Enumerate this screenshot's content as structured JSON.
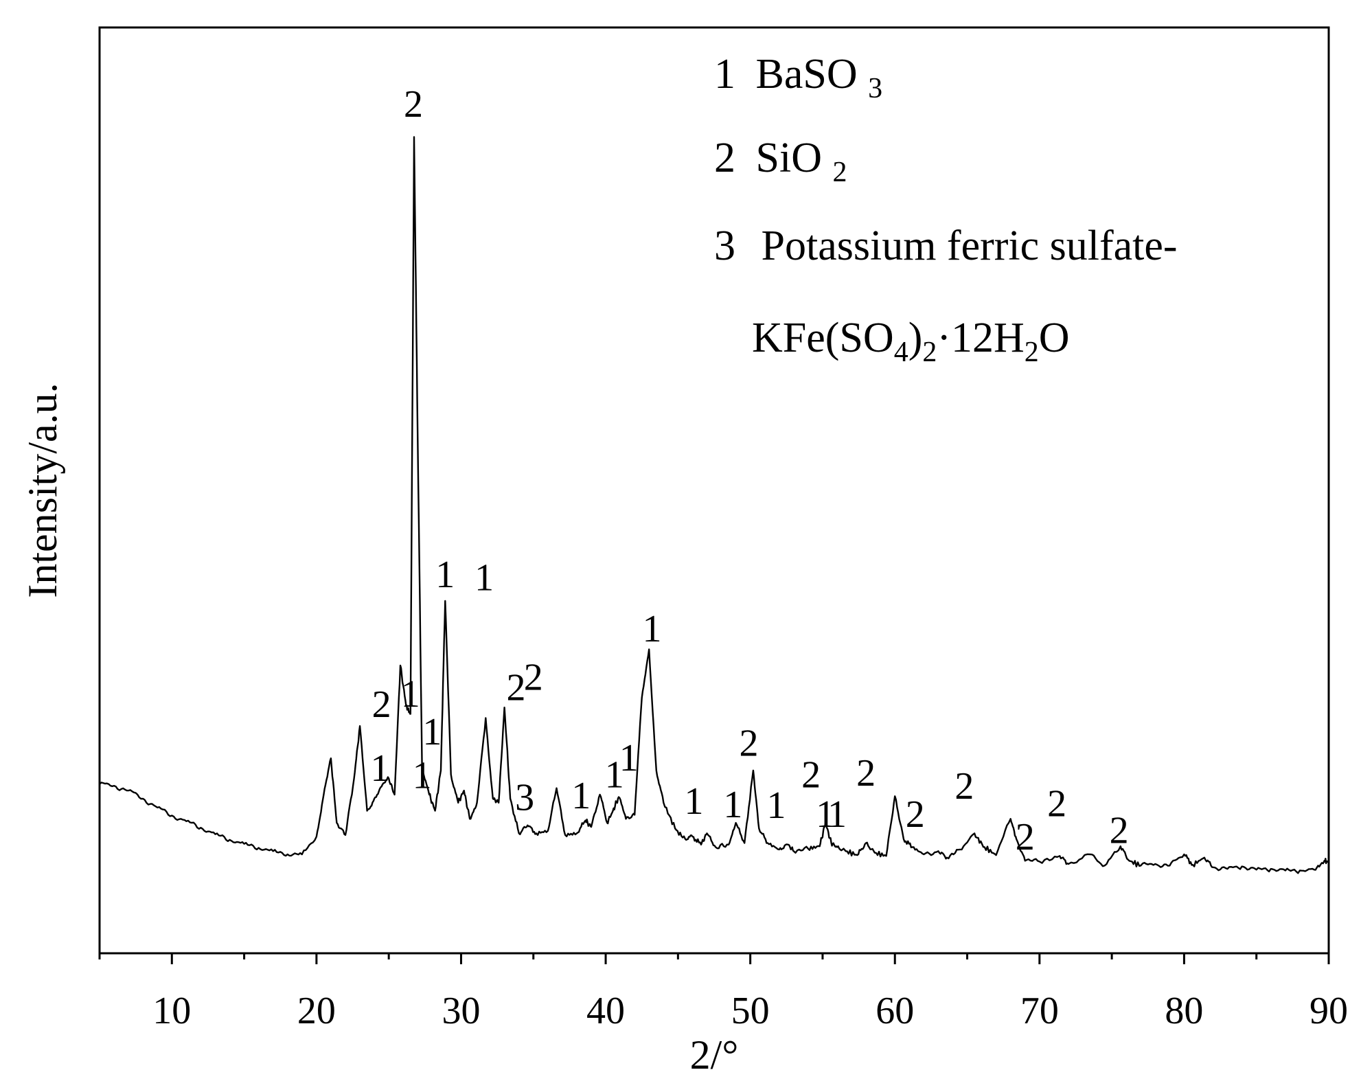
{
  "chart_data": {
    "type": "line",
    "title": "",
    "xlabel": "2/°",
    "ylabel": "Intensity/a.u.",
    "xlim": [
      5,
      90
    ],
    "ylim": [
      0,
      1000
    ],
    "x_ticks": [
      "10",
      "20",
      "30",
      "40",
      "50",
      "60",
      "70",
      "80",
      "90"
    ],
    "y_ticks": [],
    "grid": false,
    "line_color": "#000000",
    "legend_position": "top-right",
    "legend": [
      {
        "num": "1",
        "formula": "BaSO",
        "sub": "3"
      },
      {
        "num": "2",
        "formula": "SiO",
        "sub": "2"
      },
      {
        "num": "3",
        "formula": "Potassium ferric sulfate-",
        "sub": ""
      }
    ],
    "legend_extra": {
      "p1": "KFe(SO",
      "s1": "4",
      "p2": ")",
      "s2": "2",
      "p3": "·12H",
      "s3": "2",
      "p4": "O"
    },
    "series": [
      {
        "name": "",
        "points": [
          [
            5,
            173
          ],
          [
            6,
            171
          ],
          [
            7,
            165
          ],
          [
            8,
            155
          ],
          [
            9,
            144
          ],
          [
            10,
            134
          ],
          [
            11,
            127
          ],
          [
            12,
            119
          ],
          [
            13,
            111
          ],
          [
            14,
            104
          ],
          [
            15,
            99
          ],
          [
            16,
            94
          ],
          [
            17,
            90
          ],
          [
            18,
            86
          ],
          [
            19,
            86
          ],
          [
            20,
            108
          ],
          [
            20.5,
            160
          ],
          [
            21,
            205
          ],
          [
            21.4,
            125
          ],
          [
            22,
            110
          ],
          [
            22.6,
            180
          ],
          [
            23,
            245
          ],
          [
            23.5,
            140
          ],
          [
            24,
            155
          ],
          [
            24.5,
            170
          ],
          [
            25,
            180
          ],
          [
            25.4,
            160
          ],
          [
            25.8,
            320
          ],
          [
            26.2,
            270
          ],
          [
            26.5,
            260
          ],
          [
            26.75,
            975
          ],
          [
            27,
            600
          ],
          [
            27.3,
            195
          ],
          [
            27.8,
            160
          ],
          [
            28.2,
            140
          ],
          [
            28.6,
            190
          ],
          [
            28.9,
            400
          ],
          [
            29.3,
            185
          ],
          [
            29.8,
            150
          ],
          [
            30.2,
            165
          ],
          [
            30.6,
            130
          ],
          [
            31.1,
            150
          ],
          [
            31.7,
            255
          ],
          [
            32.2,
            155
          ],
          [
            32.6,
            150
          ],
          [
            33,
            268
          ],
          [
            33.4,
            155
          ],
          [
            34,
            112
          ],
          [
            34.6,
            122
          ],
          [
            35.2,
            112
          ],
          [
            36,
            115
          ],
          [
            36.6,
            168
          ],
          [
            37.2,
            110
          ],
          [
            38,
            112
          ],
          [
            38.6,
            128
          ],
          [
            39,
            120
          ],
          [
            39.6,
            160
          ],
          [
            40.1,
            125
          ],
          [
            40.5,
            140
          ],
          [
            40.9,
            157
          ],
          [
            41.4,
            130
          ],
          [
            42,
            135
          ],
          [
            42.5,
            280
          ],
          [
            43,
            340
          ],
          [
            43.5,
            190
          ],
          [
            44,
            150
          ],
          [
            44.8,
            118
          ],
          [
            45.5,
            105
          ],
          [
            46,
            108
          ],
          [
            46.6,
            98
          ],
          [
            47,
            112
          ],
          [
            47.6,
            95
          ],
          [
            48.5,
            98
          ],
          [
            49,
            125
          ],
          [
            49.6,
            100
          ],
          [
            50.2,
            190
          ],
          [
            50.6,
            118
          ],
          [
            51.2,
            100
          ],
          [
            52,
            92
          ],
          [
            52.6,
            98
          ],
          [
            53,
            90
          ],
          [
            54,
            93
          ],
          [
            54.8,
            96
          ],
          [
            55.2,
            125
          ],
          [
            55.6,
            100
          ],
          [
            56,
            95
          ],
          [
            56.6,
            90
          ],
          [
            57.4,
            85
          ],
          [
            58,
            100
          ],
          [
            58.6,
            88
          ],
          [
            59.4,
            84
          ],
          [
            60,
            158
          ],
          [
            60.6,
            105
          ],
          [
            61.2,
            95
          ],
          [
            62,
            86
          ],
          [
            63,
            90
          ],
          [
            63.6,
            82
          ],
          [
            64.5,
            92
          ],
          [
            65.5,
            112
          ],
          [
            66.2,
            95
          ],
          [
            67,
            85
          ],
          [
            68,
            130
          ],
          [
            68.4,
            105
          ],
          [
            69,
            78
          ],
          [
            70,
            77
          ],
          [
            71.4,
            84
          ],
          [
            72,
            74
          ],
          [
            73.5,
            86
          ],
          [
            74.5,
            72
          ],
          [
            75.6,
            96
          ],
          [
            76.2,
            78
          ],
          [
            77,
            72
          ],
          [
            78,
            74
          ],
          [
            79,
            72
          ],
          [
            80,
            86
          ],
          [
            80.6,
            73
          ],
          [
            81.4,
            82
          ],
          [
            82,
            70
          ],
          [
            83,
            68
          ],
          [
            84,
            71
          ],
          [
            85,
            67
          ],
          [
            86,
            68
          ],
          [
            87,
            66
          ],
          [
            88,
            66
          ],
          [
            89,
            67
          ],
          [
            89.7,
            78
          ],
          [
            90,
            76
          ]
        ]
      }
    ],
    "peak_labels": [
      {
        "text": "2",
        "x": 26.7,
        "y": 1000
      },
      {
        "text": "1",
        "x": 28.9,
        "y": 417
      },
      {
        "text": "1",
        "x": 31.6,
        "y": 413
      },
      {
        "text": "1",
        "x": 43.2,
        "y": 350
      },
      {
        "text": "2",
        "x": 24.5,
        "y": 256
      },
      {
        "text": "1",
        "x": 26.5,
        "y": 269
      },
      {
        "text": "2",
        "x": 33.8,
        "y": 277
      },
      {
        "text": "2",
        "x": 35.0,
        "y": 290
      },
      {
        "text": "1",
        "x": 28.0,
        "y": 222
      },
      {
        "text": "1",
        "x": 24.4,
        "y": 177
      },
      {
        "text": "1",
        "x": 27.3,
        "y": 168
      },
      {
        "text": "3",
        "x": 34.4,
        "y": 141
      },
      {
        "text": "1",
        "x": 38.3,
        "y": 143
      },
      {
        "text": "1",
        "x": 40.6,
        "y": 169
      },
      {
        "text": "1",
        "x": 41.6,
        "y": 190
      },
      {
        "text": "2",
        "x": 49.9,
        "y": 208
      },
      {
        "text": "1",
        "x": 46.1,
        "y": 136
      },
      {
        "text": "1",
        "x": 48.8,
        "y": 132
      },
      {
        "text": "1",
        "x": 51.8,
        "y": 131
      },
      {
        "text": "2",
        "x": 54.2,
        "y": 169
      },
      {
        "text": "1",
        "x": 55.2,
        "y": 120
      },
      {
        "text": "1",
        "x": 56.0,
        "y": 120
      },
      {
        "text": "2",
        "x": 58.0,
        "y": 171
      },
      {
        "text": "2",
        "x": 61.4,
        "y": 120
      },
      {
        "text": "2",
        "x": 64.8,
        "y": 155
      },
      {
        "text": "2",
        "x": 69.0,
        "y": 92
      },
      {
        "text": "2",
        "x": 71.2,
        "y": 133
      },
      {
        "text": "2",
        "x": 75.5,
        "y": 100
      }
    ]
  }
}
